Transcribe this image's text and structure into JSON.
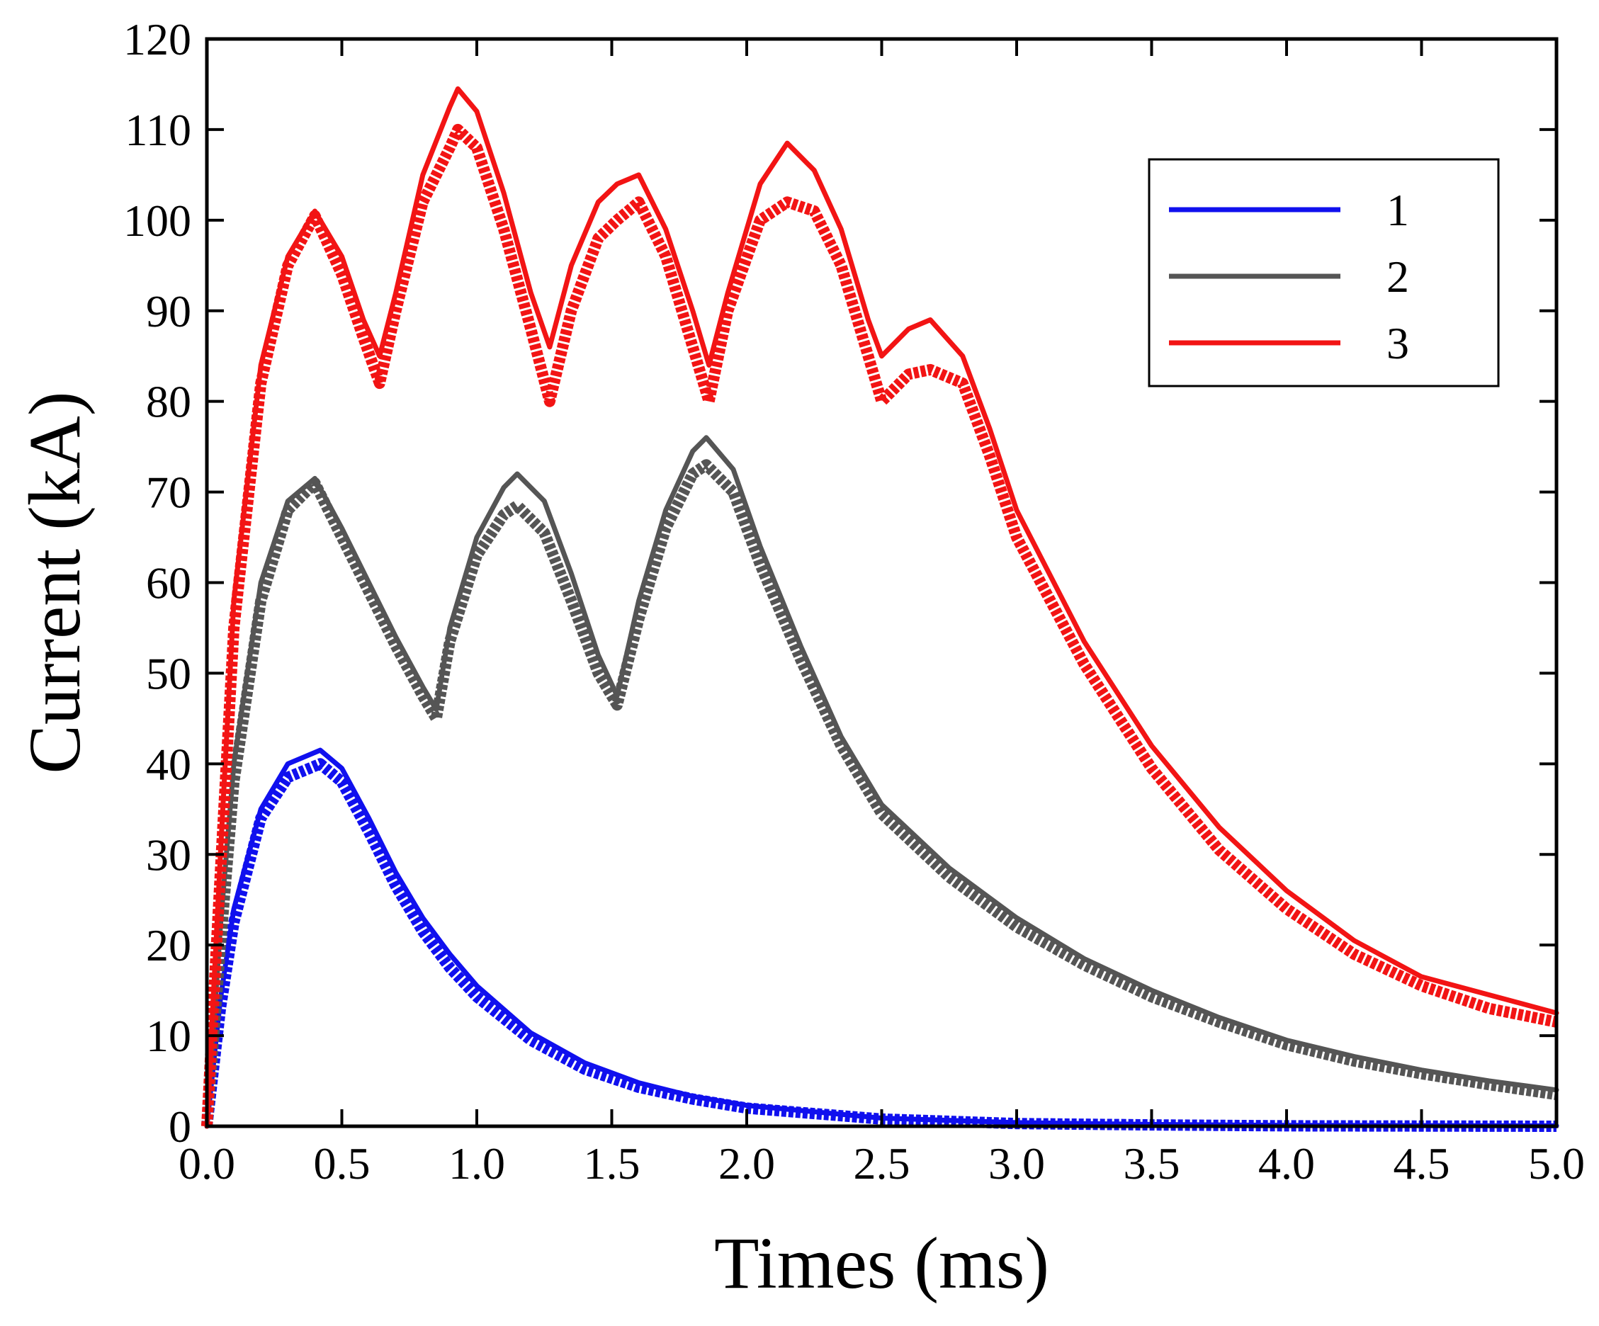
{
  "chart_data": {
    "type": "line",
    "title": "",
    "xlabel": "Times (ms)",
    "ylabel": "Current (kA)",
    "xlim": [
      0,
      5
    ],
    "ylim": [
      0,
      120
    ],
    "xticks": [
      0,
      0.5,
      1,
      1.5,
      2,
      2.5,
      3,
      3.5,
      4,
      4.5,
      5
    ],
    "xtick_labels": [
      "0.0",
      "0.5",
      "1.0",
      "1.5",
      "2.0",
      "2.5",
      "3.0",
      "3.5",
      "4.0",
      "4.5",
      "5.0"
    ],
    "yticks": [
      0,
      10,
      20,
      30,
      40,
      50,
      60,
      70,
      80,
      90,
      100,
      110,
      120
    ],
    "ytick_labels": [
      "0",
      "10",
      "20",
      "30",
      "40",
      "50",
      "60",
      "70",
      "80",
      "90",
      "100",
      "110",
      "120"
    ],
    "grid": false,
    "legend_position": "top-right",
    "series": [
      {
        "name": "1",
        "color": "#1010ee",
        "simulated": [
          [
            0,
            0
          ],
          [
            0.05,
            14
          ],
          [
            0.1,
            24
          ],
          [
            0.2,
            35
          ],
          [
            0.3,
            40
          ],
          [
            0.42,
            41.5
          ],
          [
            0.5,
            39.5
          ],
          [
            0.6,
            34
          ],
          [
            0.7,
            28
          ],
          [
            0.8,
            23
          ],
          [
            0.9,
            19
          ],
          [
            1.0,
            15.5
          ],
          [
            1.2,
            10.3
          ],
          [
            1.4,
            7
          ],
          [
            1.6,
            4.8
          ],
          [
            1.8,
            3.3
          ],
          [
            2.0,
            2.3
          ],
          [
            2.5,
            0.9
          ],
          [
            3.0,
            0.4
          ],
          [
            3.5,
            0.2
          ],
          [
            4.0,
            0.1
          ],
          [
            5.0,
            0.05
          ]
        ],
        "measured": [
          [
            0,
            0
          ],
          [
            0.05,
            13
          ],
          [
            0.1,
            22.5
          ],
          [
            0.2,
            34
          ],
          [
            0.3,
            38.5
          ],
          [
            0.42,
            40
          ],
          [
            0.5,
            38
          ],
          [
            0.6,
            32.5
          ],
          [
            0.7,
            26.5
          ],
          [
            0.8,
            21.5
          ],
          [
            0.9,
            17.5
          ],
          [
            1.0,
            14.3
          ],
          [
            1.2,
            9.5
          ],
          [
            1.4,
            6.3
          ],
          [
            1.6,
            4.3
          ],
          [
            1.8,
            3
          ],
          [
            2.0,
            2
          ],
          [
            2.5,
            0.8
          ],
          [
            3.0,
            0.3
          ],
          [
            3.5,
            0.15
          ],
          [
            4.0,
            0.05
          ],
          [
            5.0,
            0
          ]
        ]
      },
      {
        "name": "2",
        "color": "#555555",
        "simulated": [
          [
            0,
            0
          ],
          [
            0.05,
            22
          ],
          [
            0.1,
            40
          ],
          [
            0.2,
            60
          ],
          [
            0.3,
            69
          ],
          [
            0.4,
            71.5
          ],
          [
            0.5,
            66
          ],
          [
            0.6,
            60
          ],
          [
            0.7,
            54
          ],
          [
            0.8,
            48.5
          ],
          [
            0.85,
            46
          ],
          [
            0.9,
            55
          ],
          [
            1.0,
            65
          ],
          [
            1.1,
            70.5
          ],
          [
            1.15,
            72
          ],
          [
            1.25,
            69
          ],
          [
            1.35,
            61
          ],
          [
            1.45,
            52
          ],
          [
            1.52,
            47.5
          ],
          [
            1.6,
            58
          ],
          [
            1.7,
            68
          ],
          [
            1.8,
            74.5
          ],
          [
            1.85,
            76
          ],
          [
            1.95,
            72.5
          ],
          [
            2.05,
            64
          ],
          [
            2.2,
            53
          ],
          [
            2.35,
            43
          ],
          [
            2.5,
            35.5
          ],
          [
            2.75,
            28.5
          ],
          [
            3.0,
            23
          ],
          [
            3.25,
            18.5
          ],
          [
            3.5,
            15
          ],
          [
            3.75,
            12
          ],
          [
            4.0,
            9.5
          ],
          [
            4.25,
            7.7
          ],
          [
            4.5,
            6.2
          ],
          [
            4.75,
            5
          ],
          [
            5.0,
            4
          ]
        ],
        "measured": [
          [
            0,
            0
          ],
          [
            0.05,
            20
          ],
          [
            0.1,
            38
          ],
          [
            0.2,
            58
          ],
          [
            0.3,
            68
          ],
          [
            0.4,
            71
          ],
          [
            0.5,
            65
          ],
          [
            0.6,
            59
          ],
          [
            0.7,
            53
          ],
          [
            0.8,
            47.5
          ],
          [
            0.85,
            45
          ],
          [
            0.9,
            53.5
          ],
          [
            1.0,
            63
          ],
          [
            1.1,
            67.5
          ],
          [
            1.15,
            68.5
          ],
          [
            1.25,
            65.5
          ],
          [
            1.35,
            58
          ],
          [
            1.45,
            50
          ],
          [
            1.52,
            46.5
          ],
          [
            1.6,
            56
          ],
          [
            1.7,
            66
          ],
          [
            1.8,
            72
          ],
          [
            1.85,
            73
          ],
          [
            1.95,
            70
          ],
          [
            2.05,
            62
          ],
          [
            2.2,
            51.5
          ],
          [
            2.35,
            42
          ],
          [
            2.5,
            34.5
          ],
          [
            2.75,
            27.5
          ],
          [
            3.0,
            22
          ],
          [
            3.25,
            17.8
          ],
          [
            3.5,
            14.3
          ],
          [
            3.75,
            11.5
          ],
          [
            4.0,
            9
          ],
          [
            4.25,
            7.2
          ],
          [
            4.5,
            5.8
          ],
          [
            4.75,
            4.6
          ],
          [
            5.0,
            3.5
          ]
        ]
      },
      {
        "name": "3",
        "color": "#f21414",
        "simulated": [
          [
            0,
            0
          ],
          [
            0.05,
            30
          ],
          [
            0.1,
            58
          ],
          [
            0.2,
            84
          ],
          [
            0.3,
            96
          ],
          [
            0.4,
            101
          ],
          [
            0.5,
            96
          ],
          [
            0.58,
            89
          ],
          [
            0.64,
            85
          ],
          [
            0.7,
            92
          ],
          [
            0.8,
            105
          ],
          [
            0.9,
            112.5
          ],
          [
            0.93,
            114.5
          ],
          [
            1.0,
            112
          ],
          [
            1.1,
            103
          ],
          [
            1.2,
            92
          ],
          [
            1.27,
            86
          ],
          [
            1.35,
            95
          ],
          [
            1.45,
            102
          ],
          [
            1.52,
            104
          ],
          [
            1.6,
            105
          ],
          [
            1.7,
            99
          ],
          [
            1.8,
            90
          ],
          [
            1.86,
            84
          ],
          [
            1.93,
            92
          ],
          [
            2.05,
            104
          ],
          [
            2.15,
            108.5
          ],
          [
            2.25,
            105.5
          ],
          [
            2.35,
            99
          ],
          [
            2.45,
            89
          ],
          [
            2.5,
            85
          ],
          [
            2.6,
            88
          ],
          [
            2.68,
            89
          ],
          [
            2.8,
            85
          ],
          [
            2.9,
            77
          ],
          [
            3.0,
            68
          ],
          [
            3.25,
            53.5
          ],
          [
            3.5,
            42
          ],
          [
            3.75,
            33
          ],
          [
            4.0,
            26
          ],
          [
            4.25,
            20.5
          ],
          [
            4.5,
            16.5
          ],
          [
            4.75,
            14.5
          ],
          [
            5.0,
            12.5
          ]
        ],
        "measured": [
          [
            0,
            0
          ],
          [
            0.05,
            28
          ],
          [
            0.1,
            55
          ],
          [
            0.2,
            82
          ],
          [
            0.3,
            95
          ],
          [
            0.4,
            100.5
          ],
          [
            0.5,
            94
          ],
          [
            0.58,
            87
          ],
          [
            0.64,
            82
          ],
          [
            0.7,
            90
          ],
          [
            0.8,
            102
          ],
          [
            0.9,
            108
          ],
          [
            0.93,
            110
          ],
          [
            1.0,
            108
          ],
          [
            1.1,
            99
          ],
          [
            1.2,
            88
          ],
          [
            1.27,
            80
          ],
          [
            1.35,
            90
          ],
          [
            1.45,
            98
          ],
          [
            1.52,
            100
          ],
          [
            1.6,
            102
          ],
          [
            1.7,
            96
          ],
          [
            1.8,
            86
          ],
          [
            1.86,
            80
          ],
          [
            1.93,
            90
          ],
          [
            2.05,
            100
          ],
          [
            2.15,
            102
          ],
          [
            2.25,
            101
          ],
          [
            2.35,
            95
          ],
          [
            2.45,
            85
          ],
          [
            2.5,
            80
          ],
          [
            2.6,
            83
          ],
          [
            2.68,
            83.5
          ],
          [
            2.8,
            82
          ],
          [
            2.9,
            74
          ],
          [
            3.0,
            65
          ],
          [
            3.25,
            51
          ],
          [
            3.5,
            39.5
          ],
          [
            3.75,
            30.5
          ],
          [
            4.0,
            24
          ],
          [
            4.25,
            19
          ],
          [
            4.5,
            15.5
          ],
          [
            4.75,
            13
          ],
          [
            5.0,
            11.5
          ]
        ]
      }
    ]
  }
}
